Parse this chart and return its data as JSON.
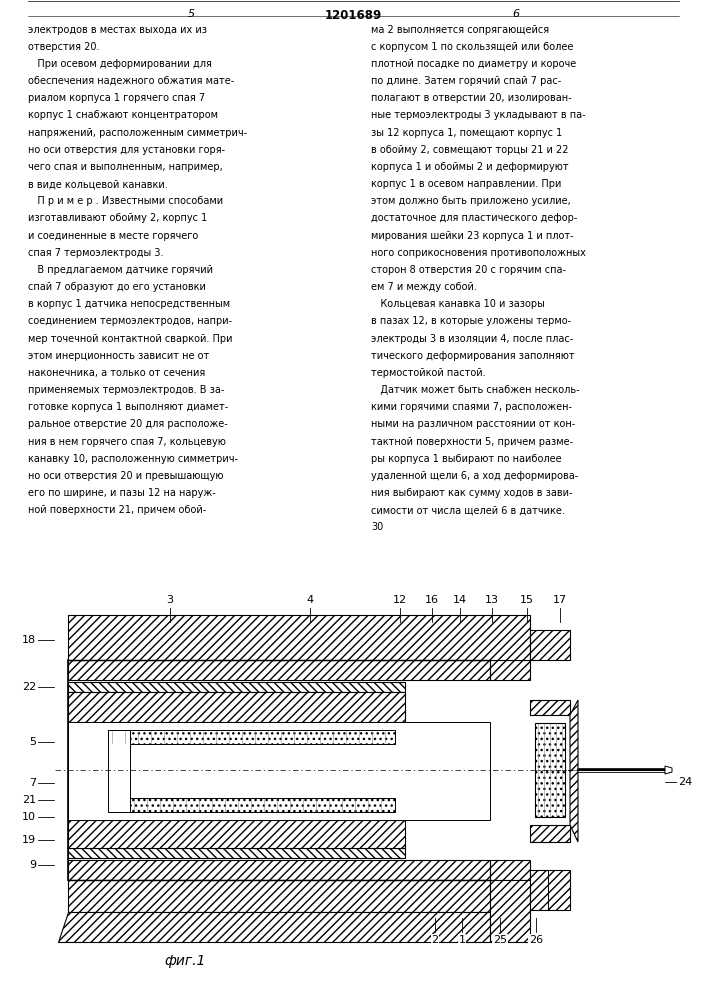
{
  "page_number_center": "1201689",
  "page_col_left": "5",
  "page_col_right": "6",
  "fig_label": "фиг.1",
  "background_color": "#ffffff",
  "text_color": "#000000",
  "left_column_text": [
    "электродов в местах выхода их из",
    "отверстия 20.",
    "   При осевом деформировании для",
    "обеспечения надежного обжатия мате-",
    "риалом корпуса 1 горячего спая 7",
    "корпус 1 снабжают концентратором",
    "напряжений, расположенным симметрич-",
    "но оси отверстия для установки горя-",
    "чего спая и выполненным, например,",
    "в виде кольцевой канавки.",
    "   П р и м е р . Известными способами",
    "изготавливают обойму 2, корпус 1",
    "и соединенные в месте горячего",
    "спая 7 термоэлектроды 3.",
    "   В предлагаемом датчике горячий",
    "спай 7 образуют до его установки",
    "в корпус 1 датчика непосредственным",
    "соединением термоэлектродов, напри-",
    "мер точечной контактной сваркой. При",
    "этом инерционность зависит не от",
    "наконечника, а только от сечения",
    "применяемых термоэлектродов. В за-",
    "готовке корпуса 1 выполняют диамет-",
    "ральное отверстие 20 для расположе-",
    "ния в нем горячего спая 7, кольцевую",
    "канавку 10, расположенную симметрич-",
    "но оси отверстия 20 и превышающую",
    "его по ширине, и пазы 12 на наруж-",
    "ной поверхности 21, причем обой-"
  ],
  "right_column_text": [
    "ма 2 выполняется сопрягающейся",
    "с корпусом 1 по скользящей или более",
    "плотной посадке по диаметру и короче",
    "по длине. Затем горячий спай 7 рас-",
    "полагают в отверстии 20, изолирован-",
    "ные термоэлектроды 3 укладывают в па-",
    "зы 12 корпуса 1, помещают корпус 1",
    "в обойму 2, совмещают торцы 21 и 22",
    "корпуса 1 и обоймы 2 и деформируют",
    "корпус 1 в осевом направлении. При",
    "этом должно быть приложено усилие,",
    "достаточное для пластического дефор-",
    "мирования шейки 23 корпуса 1 и плот-",
    "ного соприкосновения противоположных",
    "сторон 8 отверстия 20 с горячим спа-",
    "ем 7 и между собой.",
    "   Кольцевая канавка 10 и зазоры",
    "в пазах 12, в которые уложены термо-",
    "электроды 3 в изоляции 4, после плас-",
    "тического деформирования заполняют",
    "термостойкой пастой.",
    "   Датчик может быть снабжен несколь-",
    "кими горячими спаями 7, расположен-",
    "ными на различном расстоянии от кон-",
    "тактной поверхности 5, причем разме-",
    "ры корпуса 1 выбирают по наиболее",
    "удаленной щели 6, а ход деформирова-",
    "ния выбирают как сумму ходов в зави-",
    "симости от числа щелей 6 в датчике.",
    "30"
  ]
}
